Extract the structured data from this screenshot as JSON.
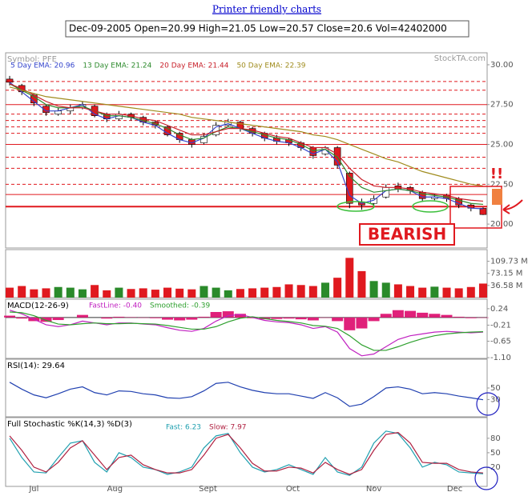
{
  "header": {
    "link": "Printer friendly charts",
    "quote": "Dec-09-2005 Open=20.99 High=21.05 Low=20.57 Close=20.6 Vol=42402000"
  },
  "chart_data": [
    {
      "type": "candlestick",
      "title": "Symbol: PFE",
      "source": "StockTA.com",
      "x": [
        0,
        3,
        6,
        9,
        12,
        15,
        18,
        21,
        24,
        27,
        30,
        33,
        36,
        39,
        42,
        45,
        48,
        51,
        54,
        57,
        60,
        63,
        66,
        69,
        72,
        75,
        78,
        81,
        84,
        87,
        90,
        93,
        96,
        99,
        102,
        105,
        108,
        111,
        114,
        117
      ],
      "xlim": [
        -1,
        118
      ],
      "open": [
        29.1,
        28.7,
        28.1,
        27.4,
        26.9,
        27.1,
        27.3,
        27.4,
        26.9,
        26.6,
        26.9,
        26.7,
        26.4,
        26.1,
        25.7,
        25.3,
        25.1,
        25.6,
        26.2,
        26.4,
        26.0,
        25.7,
        25.4,
        25.3,
        25.1,
        24.8,
        24.4,
        24.8,
        23.2,
        21.4,
        21.3,
        21.7,
        22.4,
        22.3,
        22.0,
        21.6,
        21.8,
        21.6,
        21.2,
        20.99
      ],
      "high": [
        29.3,
        28.8,
        28.2,
        27.5,
        27.3,
        27.5,
        27.7,
        27.5,
        27.0,
        27.1,
        27.0,
        26.8,
        26.5,
        26.2,
        25.8,
        25.4,
        25.7,
        26.4,
        26.6,
        26.5,
        26.1,
        25.8,
        25.6,
        25.4,
        25.2,
        24.9,
        24.9,
        24.9,
        23.3,
        21.6,
        21.8,
        22.5,
        22.6,
        22.4,
        22.1,
        21.9,
        21.9,
        21.7,
        21.3,
        21.05
      ],
      "low": [
        28.7,
        28.1,
        27.4,
        26.8,
        26.8,
        26.9,
        27.2,
        26.7,
        26.4,
        26.5,
        26.5,
        26.2,
        26.0,
        25.5,
        25.1,
        24.8,
        25.0,
        25.5,
        26.1,
        25.8,
        25.5,
        25.2,
        25.0,
        24.9,
        24.6,
        24.1,
        24.3,
        23.5,
        21.0,
        20.9,
        21.2,
        21.6,
        22.0,
        21.9,
        21.4,
        21.5,
        21.4,
        21.0,
        20.8,
        20.57
      ],
      "close": [
        28.9,
        28.3,
        27.6,
        27.0,
        27.1,
        27.3,
        27.5,
        26.8,
        26.6,
        26.9,
        26.7,
        26.4,
        26.2,
        25.6,
        25.3,
        25.0,
        25.5,
        26.2,
        26.4,
        26.0,
        25.7,
        25.4,
        25.2,
        25.1,
        24.8,
        24.3,
        24.8,
        23.7,
        21.3,
        21.2,
        21.6,
        22.3,
        22.2,
        22.1,
        21.6,
        21.7,
        21.6,
        21.2,
        21.0,
        20.6
      ],
      "up_color": "#ffffff",
      "down_color": "#e0191f",
      "series": [
        {
          "name": "5 Day EMA: 20.96",
          "color": "#3344cc",
          "values": [
            28.9,
            28.3,
            27.7,
            27.1,
            27.1,
            27.3,
            27.5,
            26.9,
            26.6,
            26.8,
            26.7,
            26.4,
            26.2,
            25.7,
            25.3,
            25.1,
            25.4,
            26.1,
            26.3,
            26.0,
            25.7,
            25.4,
            25.2,
            25.1,
            24.8,
            24.4,
            24.7,
            23.9,
            21.8,
            21.3,
            21.5,
            22.1,
            22.2,
            22.1,
            21.7,
            21.7,
            21.6,
            21.3,
            21.0,
            20.96
          ]
        },
        {
          "name": "13 Day EMA: 21.24",
          "color": "#2e8b2e",
          "values": [
            28.8,
            28.4,
            28.0,
            27.5,
            27.3,
            27.3,
            27.4,
            27.1,
            26.8,
            26.8,
            26.7,
            26.5,
            26.3,
            26.0,
            25.6,
            25.3,
            25.4,
            25.8,
            26.1,
            26.0,
            25.8,
            25.6,
            25.4,
            25.3,
            25.0,
            24.6,
            24.7,
            24.2,
            23.0,
            22.3,
            22.0,
            22.1,
            22.2,
            22.1,
            21.9,
            21.8,
            21.7,
            21.5,
            21.3,
            21.24
          ]
        },
        {
          "name": "20 Day EMA: 21.44",
          "color": "#c8202a",
          "values": [
            28.8,
            28.5,
            28.1,
            27.7,
            27.4,
            27.3,
            27.3,
            27.1,
            26.9,
            26.9,
            26.8,
            26.6,
            26.5,
            26.2,
            25.9,
            25.6,
            25.6,
            25.8,
            26.0,
            26.0,
            25.9,
            25.7,
            25.5,
            25.4,
            25.1,
            24.8,
            24.8,
            24.4,
            23.5,
            22.8,
            22.4,
            22.3,
            22.3,
            22.2,
            22.0,
            21.9,
            21.8,
            21.6,
            21.5,
            21.44
          ]
        },
        {
          "name": "50 Day EMA: 22.39",
          "color": "#a08c1e",
          "values": [
            28.6,
            28.4,
            28.2,
            28.0,
            27.9,
            27.8,
            27.7,
            27.6,
            27.5,
            27.4,
            27.3,
            27.2,
            27.1,
            27.0,
            26.9,
            26.7,
            26.6,
            26.5,
            26.4,
            26.3,
            26.2,
            26.1,
            26.0,
            25.9,
            25.8,
            25.6,
            25.5,
            25.3,
            25.0,
            24.7,
            24.4,
            24.1,
            23.9,
            23.6,
            23.3,
            23.1,
            22.9,
            22.7,
            22.5,
            22.39
          ]
        }
      ],
      "ylim": [
        18.5,
        30.75
      ],
      "yticks": [
        {
          "value": 30,
          "label": "30.00"
        },
        {
          "value": 27.5,
          "label": "27.50"
        },
        {
          "value": 25,
          "label": "25.00"
        },
        {
          "value": 22.5,
          "label": "22.50"
        },
        {
          "value": 20,
          "label": "20.00"
        }
      ],
      "levels": [
        {
          "value": 28.95,
          "style": "dashed"
        },
        {
          "value": 28.4,
          "style": "dashed"
        },
        {
          "value": 27.5,
          "style": "solid"
        },
        {
          "value": 26.9,
          "style": "dashed"
        },
        {
          "value": 26.5,
          "style": "dashed"
        },
        {
          "value": 26.1,
          "style": "dashed"
        },
        {
          "value": 25.7,
          "style": "dashed"
        },
        {
          "value": 25,
          "style": "solid"
        },
        {
          "value": 24.2,
          "style": "dashed"
        },
        {
          "value": 23.5,
          "style": "dashed"
        },
        {
          "value": 22.5,
          "style": "dashed"
        },
        {
          "value": 21.86,
          "style": "solid"
        },
        {
          "value": 21.1,
          "style": "thick"
        }
      ],
      "annotation": "BEARISH",
      "alert": "!!"
    },
    {
      "type": "bar",
      "values": [
        30,
        35,
        25,
        28,
        32,
        30,
        25,
        38,
        22,
        30,
        26,
        28,
        24,
        30,
        27,
        25,
        35,
        30,
        22,
        26,
        28,
        30,
        32,
        40,
        38,
        35,
        45,
        60,
        120,
        80,
        50,
        45,
        40,
        35,
        30,
        33,
        30,
        28,
        32,
        42.402
      ],
      "ylim": [
        0,
        145
      ],
      "yticks": [
        {
          "value": 109.73,
          "label": "109.73 M"
        },
        {
          "value": 73.15,
          "label": "73.15 M"
        },
        {
          "value": 36.58,
          "label": "36.58 M"
        }
      ],
      "up_color": "#2a8a2a",
      "down_color": "#e0191f"
    },
    {
      "type": "macd",
      "title": "MACD(12-26-9)",
      "series": [
        {
          "name": "FastLine: -0.40",
          "color": "#c020c0",
          "values": [
            0.2,
            0.1,
            -0.05,
            -0.2,
            -0.25,
            -0.2,
            -0.1,
            -0.15,
            -0.2,
            -0.15,
            -0.15,
            -0.18,
            -0.2,
            -0.28,
            -0.35,
            -0.38,
            -0.3,
            -0.1,
            0.05,
            0.08,
            0.0,
            -0.08,
            -0.12,
            -0.14,
            -0.2,
            -0.3,
            -0.25,
            -0.4,
            -0.85,
            -1.05,
            -1.0,
            -0.8,
            -0.6,
            -0.5,
            -0.45,
            -0.4,
            -0.38,
            -0.4,
            -0.42,
            -0.4
          ]
        },
        {
          "name": "Smoothed: -0.39",
          "color": "#2ea02e",
          "values": [
            0.15,
            0.13,
            0.05,
            -0.08,
            -0.18,
            -0.2,
            -0.17,
            -0.15,
            -0.17,
            -0.17,
            -0.16,
            -0.17,
            -0.18,
            -0.22,
            -0.27,
            -0.32,
            -0.32,
            -0.25,
            -0.12,
            -0.02,
            0.02,
            -0.03,
            -0.08,
            -0.11,
            -0.15,
            -0.22,
            -0.24,
            -0.3,
            -0.5,
            -0.75,
            -0.9,
            -0.9,
            -0.8,
            -0.68,
            -0.58,
            -0.5,
            -0.45,
            -0.42,
            -0.4,
            -0.39
          ]
        }
      ],
      "histogram": [
        0.05,
        -0.03,
        -0.1,
        -0.12,
        -0.07,
        0,
        0.07,
        0,
        -0.03,
        0.02,
        0.01,
        -0.01,
        -0.02,
        -0.06,
        -0.08,
        -0.06,
        0.02,
        0.15,
        0.17,
        0.1,
        -0.02,
        -0.05,
        -0.04,
        -0.03,
        -0.05,
        -0.08,
        -0.01,
        -0.1,
        -0.35,
        -0.3,
        -0.1,
        0.1,
        0.2,
        0.18,
        0.13,
        0.1,
        0.07,
        0.02,
        -0.02,
        -0.01
      ],
      "histogram_color": "#e0207a",
      "ylim": [
        -1.12,
        0.5
      ],
      "yticks": [
        0.24,
        -0.21,
        -0.65,
        {
          "value": -1.1,
          "label": "-1.10"
        }
      ]
    },
    {
      "type": "line",
      "title": "RSI(14): 29.64",
      "series": [
        {
          "color": "#2040b0",
          "values": [
            60,
            48,
            38,
            33,
            40,
            48,
            52,
            42,
            38,
            45,
            44,
            40,
            38,
            33,
            32,
            35,
            45,
            58,
            60,
            52,
            46,
            42,
            40,
            40,
            36,
            32,
            42,
            33,
            18,
            22,
            35,
            50,
            52,
            48,
            40,
            42,
            40,
            36,
            33,
            29.64
          ]
        }
      ],
      "ylim": [
        0,
        100
      ],
      "yticks": [
        50,
        30
      ]
    },
    {
      "type": "line",
      "title": "Full Stochastic %K(14,3) %D(3)",
      "series": [
        {
          "name": "Fast: 6.23",
          "color": "#20a0b0",
          "values": [
            80,
            40,
            10,
            8,
            40,
            70,
            75,
            30,
            10,
            50,
            40,
            20,
            15,
            5,
            10,
            20,
            60,
            85,
            90,
            50,
            20,
            10,
            15,
            25,
            15,
            5,
            40,
            10,
            3,
            20,
            70,
            95,
            90,
            60,
            20,
            30,
            25,
            10,
            8,
            6.23
          ]
        },
        {
          "name": "Slow: 7.97",
          "color": "#b02040",
          "values": [
            85,
            55,
            20,
            10,
            30,
            60,
            75,
            45,
            15,
            40,
            45,
            25,
            15,
            8,
            8,
            15,
            45,
            80,
            88,
            60,
            28,
            12,
            12,
            20,
            18,
            8,
            30,
            15,
            5,
            15,
            55,
            88,
            92,
            70,
            30,
            28,
            28,
            15,
            10,
            7.97
          ]
        }
      ],
      "ylim": [
        -20,
        123
      ],
      "yticks": [
        80,
        50,
        20
      ],
      "xticks": [
        {
          "value": 6,
          "label": "Jul"
        },
        {
          "value": 26,
          "label": "Aug"
        },
        {
          "value": 49,
          "label": "Sept"
        },
        {
          "value": 70,
          "label": "Oct"
        },
        {
          "value": 90,
          "label": "Nov"
        },
        {
          "value": 110,
          "label": "Dec"
        }
      ]
    }
  ]
}
